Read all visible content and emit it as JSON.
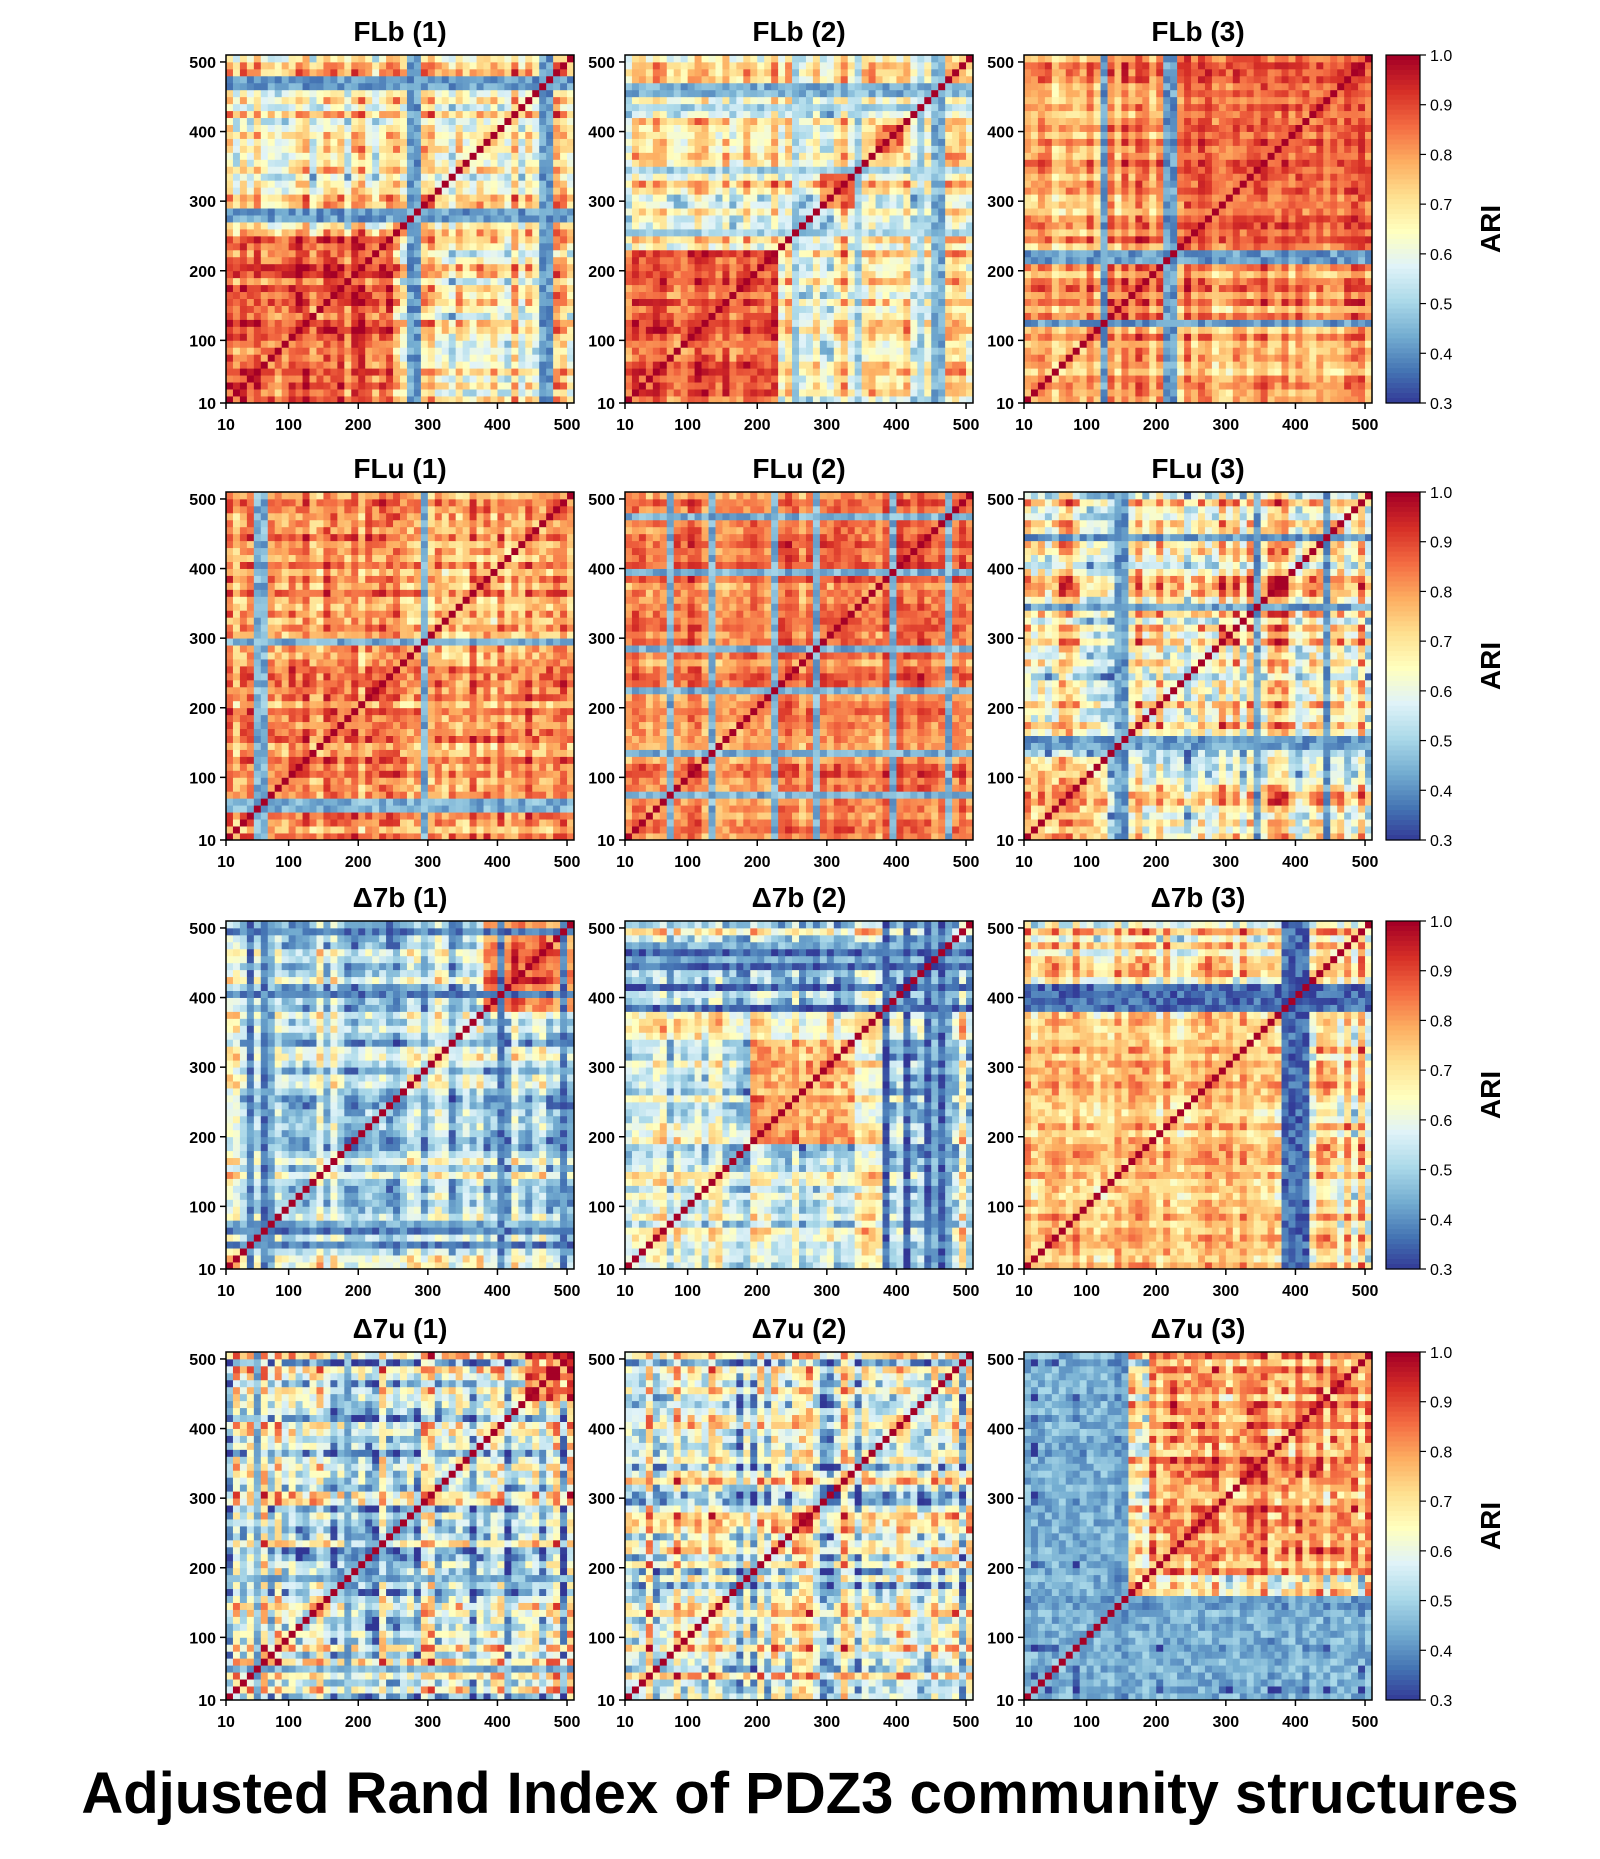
{
  "figure_title": "Adjusted Rand Index of PDZ3 community structures",
  "colors": {
    "colormap": "RdYlBu_r",
    "stops": [
      "#313695",
      "#4575b4",
      "#74add1",
      "#abd9e9",
      "#e0f3f8",
      "#ffffbf",
      "#fee090",
      "#fdae61",
      "#f46d43",
      "#d73027",
      "#a50026"
    ],
    "axes": "#000000"
  },
  "colorbar": {
    "label": "ARI",
    "range": [
      0.3,
      1.0
    ],
    "ticks": [
      "1.0",
      "0.9",
      "0.8",
      "0.7",
      "0.6",
      "0.5",
      "0.4",
      "0.3"
    ]
  },
  "chart_data": [
    {
      "type": "heatmap",
      "title": "FLb (1)",
      "x_ticks": [
        "10",
        "100",
        "200",
        "300",
        "400",
        "500"
      ],
      "y_ticks": [
        "10",
        "100",
        "200",
        "300",
        "400",
        "500"
      ],
      "range": [
        10,
        510
      ],
      "grid": false,
      "values": "50x50 symmetric Adjusted Rand Index matrix (approx.), diagonal = 1.0; strong red block 10-250, low-ARI bands near 270 and 470"
    },
    {
      "type": "heatmap",
      "title": "FLb (2)",
      "x_ticks": [
        "10",
        "100",
        "200",
        "300",
        "400",
        "500"
      ],
      "y_ticks": [
        "10",
        "100",
        "200",
        "300",
        "400",
        "500"
      ],
      "range": [
        10,
        510
      ],
      "grid": false,
      "values": "50x50 symmetric ARI matrix (approx.), diagonal = 1.0; red blocks 10-230 and 280-350"
    },
    {
      "type": "heatmap",
      "title": "FLb (3)",
      "x_ticks": [
        "10",
        "100",
        "200",
        "300",
        "400",
        "500"
      ],
      "y_ticks": [
        "10",
        "100",
        "200",
        "300",
        "400",
        "500"
      ],
      "range": [
        10,
        510
      ],
      "grid": false,
      "values": "50x50 symmetric ARI matrix (approx.), diagonal = 1.0; mostly high, blue band near 200"
    },
    {
      "type": "heatmap",
      "title": "FLu (1)",
      "x_ticks": [
        "10",
        "100",
        "200",
        "300",
        "400",
        "500"
      ],
      "y_ticks": [
        "10",
        "100",
        "200",
        "300",
        "400",
        "500"
      ],
      "range": [
        10,
        510
      ],
      "grid": false,
      "values": "50x50 symmetric ARI matrix (approx.), diagonal = 1.0; blue band near 50"
    },
    {
      "type": "heatmap",
      "title": "FLu (2)",
      "x_ticks": [
        "10",
        "100",
        "200",
        "300",
        "400",
        "500"
      ],
      "y_ticks": [
        "10",
        "100",
        "200",
        "300",
        "400",
        "500"
      ],
      "range": [
        10,
        510
      ],
      "grid": false,
      "values": "50x50 symmetric ARI matrix (approx.), diagonal = 1.0; red with blue grid lines"
    },
    {
      "type": "heatmap",
      "title": "FLu (3)",
      "x_ticks": [
        "10",
        "100",
        "200",
        "300",
        "400",
        "500"
      ],
      "y_ticks": [
        "10",
        "100",
        "200",
        "300",
        "400",
        "500"
      ],
      "range": [
        10,
        510
      ],
      "grid": false,
      "values": "50x50 symmetric ARI matrix (approx.), diagonal = 1.0; blue band near 140"
    },
    {
      "type": "heatmap",
      "title": "Δ7b (1)",
      "x_ticks": [
        "10",
        "100",
        "200",
        "300",
        "400",
        "500"
      ],
      "y_ticks": [
        "10",
        "100",
        "200",
        "300",
        "400",
        "500"
      ],
      "range": [
        10,
        510
      ],
      "grid": false,
      "values": "50x50 symmetric ARI matrix (approx.), diagonal = 1.0; red block 380-510, blue band near 60"
    },
    {
      "type": "heatmap",
      "title": "Δ7b (2)",
      "x_ticks": [
        "10",
        "100",
        "200",
        "300",
        "400",
        "500"
      ],
      "y_ticks": [
        "10",
        "100",
        "200",
        "300",
        "400",
        "500"
      ],
      "range": [
        10,
        510
      ],
      "grid": false,
      "values": "50x50 symmetric ARI matrix (approx.), diagonal = 1.0; red center 200-330, blue blocks 370-480"
    },
    {
      "type": "heatmap",
      "title": "Δ7b (3)",
      "x_ticks": [
        "10",
        "100",
        "200",
        "300",
        "400",
        "500"
      ],
      "y_ticks": [
        "10",
        "100",
        "200",
        "300",
        "400",
        "500"
      ],
      "range": [
        10,
        510
      ],
      "grid": false,
      "values": "50x50 symmetric ARI matrix (approx.), diagonal = 1.0; blue band near 390-410"
    },
    {
      "type": "heatmap",
      "title": "Δ7u (1)",
      "x_ticks": [
        "10",
        "100",
        "200",
        "300",
        "400",
        "500"
      ],
      "y_ticks": [
        "10",
        "100",
        "200",
        "300",
        "400",
        "500"
      ],
      "range": [
        10,
        510
      ],
      "grid": false,
      "values": "50x50 symmetric ARI matrix (approx.), diagonal = 1.0; mixed, mostly mid values"
    },
    {
      "type": "heatmap",
      "title": "Δ7u (2)",
      "x_ticks": [
        "10",
        "100",
        "200",
        "300",
        "400",
        "500"
      ],
      "y_ticks": [
        "10",
        "100",
        "200",
        "300",
        "400",
        "500"
      ],
      "range": [
        10,
        510
      ],
      "grid": false,
      "values": "50x50 symmetric ARI matrix (approx.), diagonal = 1.0; mixed, mostly mid values"
    },
    {
      "type": "heatmap",
      "title": "Δ7u (3)",
      "x_ticks": [
        "10",
        "100",
        "200",
        "300",
        "400",
        "500"
      ],
      "y_ticks": [
        "10",
        "100",
        "200",
        "300",
        "400",
        "500"
      ],
      "range": [
        10,
        510
      ],
      "grid": false,
      "values": "50x50 symmetric ARI matrix (approx.), diagonal = 1.0; high block 180-510, low 10-150"
    }
  ]
}
